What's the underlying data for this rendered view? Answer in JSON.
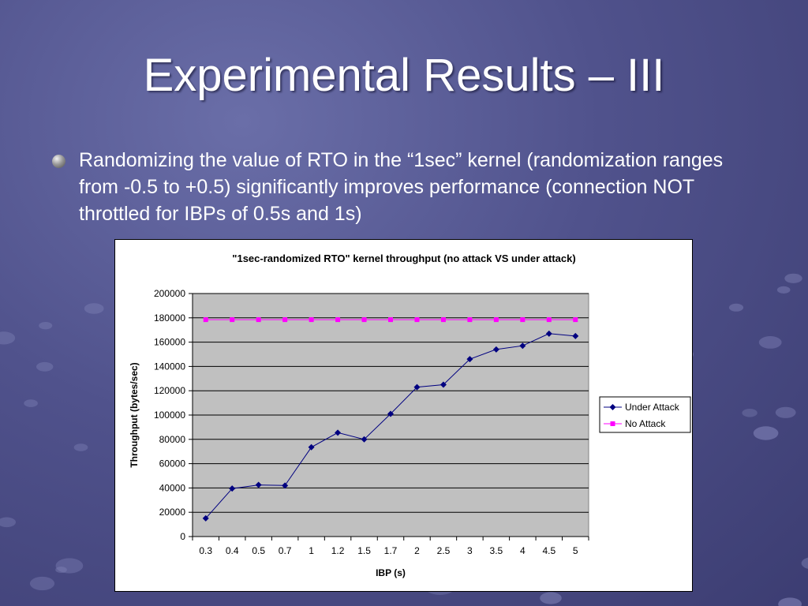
{
  "slide": {
    "title": "Experimental Results – III",
    "bullet": "Randomizing the value of RTO in the “1sec” kernel (randomization ranges from -0.5 to +0.5) significantly improves performance (connection NOT throttled for IBPs of 0.5s and 1s)"
  },
  "chart_data": {
    "type": "line",
    "title": "\"1sec-randomized RTO\" kernel throughput (no attack VS under attack)",
    "xlabel": "IBP (s)",
    "ylabel": "Throughput (bytes/sec)",
    "categories": [
      "0.3",
      "0.4",
      "0.5",
      "0.7",
      "1",
      "1.2",
      "1.5",
      "1.7",
      "2",
      "2.5",
      "3",
      "3.5",
      "4",
      "4.5",
      "5"
    ],
    "ylim": [
      0,
      200000
    ],
    "yticks": [
      "0",
      "20000",
      "40000",
      "60000",
      "80000",
      "100000",
      "120000",
      "140000",
      "160000",
      "180000",
      "200000"
    ],
    "grid": true,
    "legend_position": "right",
    "series": [
      {
        "name": "Under Attack",
        "color": "#000080",
        "marker": "diamond",
        "values": [
          15000,
          39500,
          42500,
          42000,
          73500,
          85500,
          80000,
          101000,
          123000,
          125000,
          146000,
          154000,
          157000,
          167000,
          165000
        ]
      },
      {
        "name": "No Attack",
        "color": "#ff00ff",
        "marker": "square",
        "values": [
          178500,
          178500,
          178500,
          178500,
          178500,
          178500,
          178500,
          178500,
          178500,
          178500,
          178500,
          178500,
          178500,
          178500,
          178500
        ]
      }
    ]
  }
}
